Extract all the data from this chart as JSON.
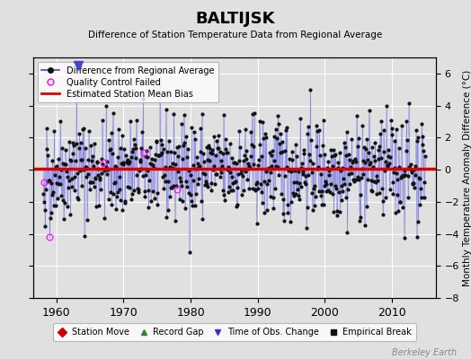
{
  "title": "BALTIJSK",
  "subtitle": "Difference of Station Temperature Data from Regional Average",
  "right_ylabel": "Monthly Temperature Anomaly Difference (°C)",
  "xlabel_watermark": "Berkeley Earth",
  "ylim": [
    -8,
    7
  ],
  "yticks": [
    -8,
    -6,
    -4,
    -2,
    0,
    2,
    4,
    6
  ],
  "xlim": [
    1956.5,
    2016.5
  ],
  "xticks": [
    1960,
    1970,
    1980,
    1990,
    2000,
    2010
  ],
  "bias_line_y": 0.05,
  "bias_line_color": "#dd0000",
  "line_color": "#4444cc",
  "fill_color": "#aaaaee",
  "dot_color": "#111111",
  "qc_fail_color": "#ff00ff",
  "background_color": "#e0e0e0",
  "grid_color": "#ffffff",
  "legend1_items": [
    {
      "label": "Difference from Regional Average",
      "color": "#4444cc"
    },
    {
      "label": "Quality Control Failed",
      "color": "#ff00ff"
    },
    {
      "label": "Estimated Station Mean Bias",
      "color": "#dd0000"
    }
  ],
  "legend2_items": [
    {
      "label": "Station Move",
      "color": "#cc0000",
      "marker": "D"
    },
    {
      "label": "Record Gap",
      "color": "#228B22",
      "marker": "^"
    },
    {
      "label": "Time of Obs. Change",
      "color": "#3333cc",
      "marker": "v"
    },
    {
      "label": "Empirical Break",
      "color": "#111111",
      "marker": "s"
    }
  ],
  "seed": 42,
  "n_years": 57,
  "start_year": 1958,
  "qc_fail_month_indices": [
    2,
    12,
    60,
    108,
    180,
    240
  ],
  "time_obs_change_years": [
    1963.2
  ],
  "station_move_years": [],
  "empirical_break_years": [],
  "record_gap_years": []
}
